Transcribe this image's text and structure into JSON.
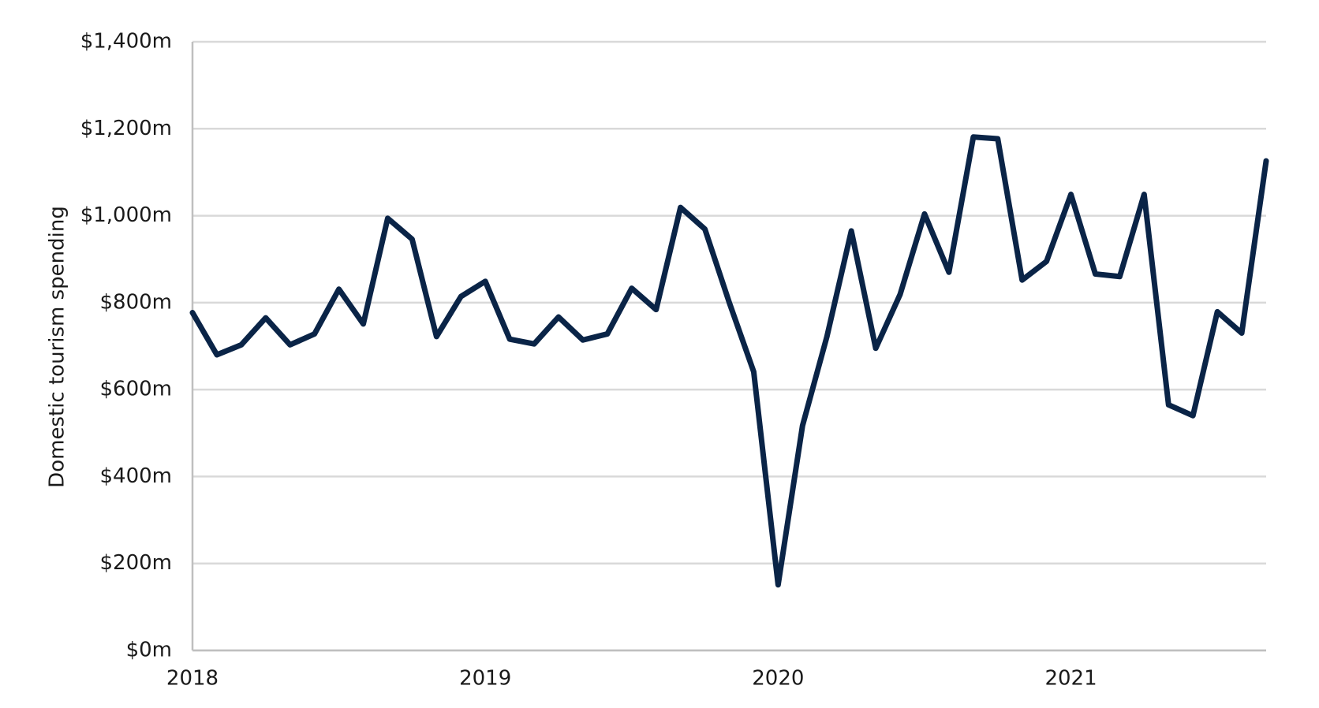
{
  "chart_data": {
    "type": "line",
    "y_label": "Domestic tourism spending",
    "categories": [
      "2018",
      null,
      null,
      null,
      null,
      null,
      null,
      null,
      null,
      null,
      null,
      null,
      "2019",
      null,
      null,
      null,
      null,
      null,
      null,
      null,
      null,
      null,
      null,
      null,
      "2020",
      null,
      null,
      null,
      null,
      null,
      null,
      null,
      null,
      null,
      null,
      null,
      "2021",
      null,
      null,
      null,
      null,
      null,
      null,
      null,
      null
    ],
    "series": [
      {
        "name": "Domestic tourism spending",
        "color": "#0a2447",
        "values": [
          777,
          680,
          703,
          765,
          703,
          728,
          831,
          751,
          994,
          946,
          722,
          814,
          849,
          716,
          705,
          767,
          714,
          728,
          833,
          784,
          1019,
          969,
          800,
          641,
          151,
          517,
          722,
          965,
          695,
          819,
          1004,
          870,
          1181,
          1177,
          852,
          895,
          1049,
          866,
          860,
          1049,
          565,
          540,
          779,
          730,
          1126
        ]
      }
    ],
    "ylim": [
      0,
      1400
    ],
    "yticks": [
      {
        "value": 0,
        "label": "$0m"
      },
      {
        "value": 200,
        "label": "$200m"
      },
      {
        "value": 400,
        "label": "$400m"
      },
      {
        "value": 600,
        "label": "$600m"
      },
      {
        "value": 800,
        "label": "$800m"
      },
      {
        "value": 1000,
        "label": "$1,000m"
      },
      {
        "value": 1200,
        "label": "$1,200m"
      },
      {
        "value": 1400,
        "label": "$1,400m"
      }
    ],
    "grid": true
  }
}
